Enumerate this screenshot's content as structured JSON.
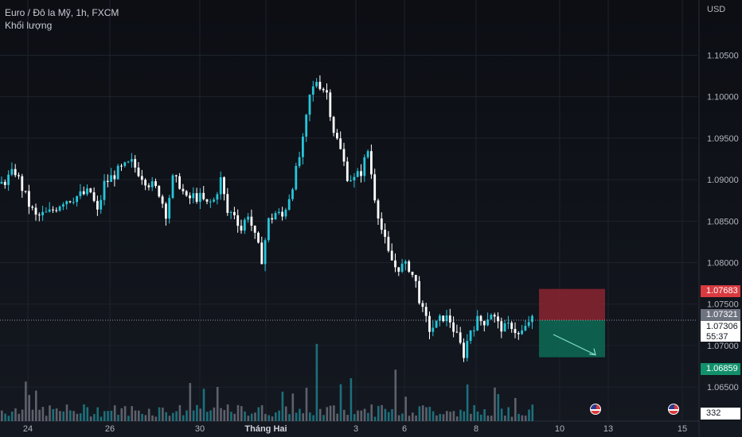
{
  "legend": {
    "title": "Euro / Đô la Mỹ, 1h, FXCM",
    "volume_label": "Khối lượng"
  },
  "axis": {
    "currency": "USD"
  },
  "price_tags": {
    "stop_loss": "1.07683",
    "crosshair": "1.07321",
    "last_price": "1.07306",
    "countdown": "55:37",
    "take_profit": "1.06859",
    "last_volume": "332"
  },
  "events": [
    {
      "icon": "us-flag-icon"
    },
    {
      "icon": "us-flag-icon"
    }
  ],
  "colors": {
    "background": "#131722",
    "candle_up": "#26c6da",
    "candle_down": "#ffffff",
    "stop_zone": "#8b2530",
    "target_zone": "#0d6b55",
    "stop_tag": "#d83a3f",
    "target_tag": "#12906b"
  },
  "chart_data": {
    "type": "candlestick",
    "symbol": "Euro / Đô la Mỹ",
    "interval": "1h",
    "source": "FXCM",
    "y_axis": {
      "ticks": [
        "1.10500",
        "1.10000",
        "1.09500",
        "1.09000",
        "1.08500",
        "1.08000",
        "1.07500",
        "1.07000",
        "1.06500"
      ],
      "range": [
        1.063,
        1.1085
      ]
    },
    "x_axis": {
      "ticks": [
        "24",
        "26",
        "30",
        "Tháng Hai",
        "3",
        "6",
        "8",
        "10",
        "13",
        "15"
      ]
    },
    "close_path": [
      [
        0,
        1.0895
      ],
      [
        4,
        1.091
      ],
      [
        8,
        1.087
      ],
      [
        10,
        1.0855
      ],
      [
        14,
        1.086
      ],
      [
        18,
        1.0875
      ],
      [
        22,
        1.088
      ],
      [
        26,
        1.0885
      ],
      [
        28,
        1.086
      ],
      [
        30,
        1.0895
      ],
      [
        34,
        1.091
      ],
      [
        38,
        1.092
      ],
      [
        42,
        1.09
      ],
      [
        46,
        1.0885
      ],
      [
        48,
        1.086
      ],
      [
        50,
        1.09
      ],
      [
        52,
        1.0895
      ],
      [
        54,
        1.0875
      ],
      [
        56,
        1.088
      ],
      [
        58,
        1.0878
      ],
      [
        60,
        1.087
      ],
      [
        62,
        1.0875
      ],
      [
        64,
        1.09
      ],
      [
        66,
        1.086
      ],
      [
        68,
        1.086
      ],
      [
        70,
        1.084
      ],
      [
        72,
        1.086
      ],
      [
        74,
        1.083
      ],
      [
        76,
        1.0805
      ],
      [
        78,
        1.085
      ],
      [
        80,
        1.086
      ],
      [
        82,
        1.0855
      ],
      [
        84,
        1.088
      ],
      [
        86,
        1.091
      ],
      [
        88,
        1.0945
      ],
      [
        90,
        1.1
      ],
      [
        92,
        1.102
      ],
      [
        93,
        1.1015
      ],
      [
        95,
        1.1005
      ],
      [
        97,
        1.096
      ],
      [
        99,
        1.0935
      ],
      [
        101,
        1.0905
      ],
      [
        103,
        1.09
      ],
      [
        105,
        1.091
      ],
      [
        107,
        1.0935
      ],
      [
        109,
        1.088
      ],
      [
        111,
        1.084
      ],
      [
        113,
        1.081
      ],
      [
        115,
        1.0795
      ],
      [
        117,
        1.0795
      ],
      [
        119,
        1.0795
      ],
      [
        121,
        1.0775
      ],
      [
        123,
        1.074
      ],
      [
        125,
        1.072
      ],
      [
        127,
        1.0725
      ],
      [
        129,
        1.0735
      ],
      [
        131,
        1.073
      ],
      [
        133,
        1.071
      ],
      [
        135,
        1.069
      ],
      [
        137,
        1.072
      ],
      [
        139,
        1.073
      ],
      [
        141,
        1.073
      ],
      [
        143,
        1.074
      ],
      [
        145,
        1.0725
      ],
      [
        147,
        1.072
      ],
      [
        149,
        1.0725
      ],
      [
        151,
        1.0712
      ],
      [
        153,
        1.072
      ],
      [
        154,
        1.073
      ]
    ],
    "volume_max": 1.0,
    "position_tool": {
      "direction": "short",
      "entry": 1.07306,
      "stop_loss": 1.07683,
      "take_profit": 1.06859
    },
    "last_price": 1.07306,
    "crosshair_price": 1.07321,
    "last_volume": 332
  }
}
